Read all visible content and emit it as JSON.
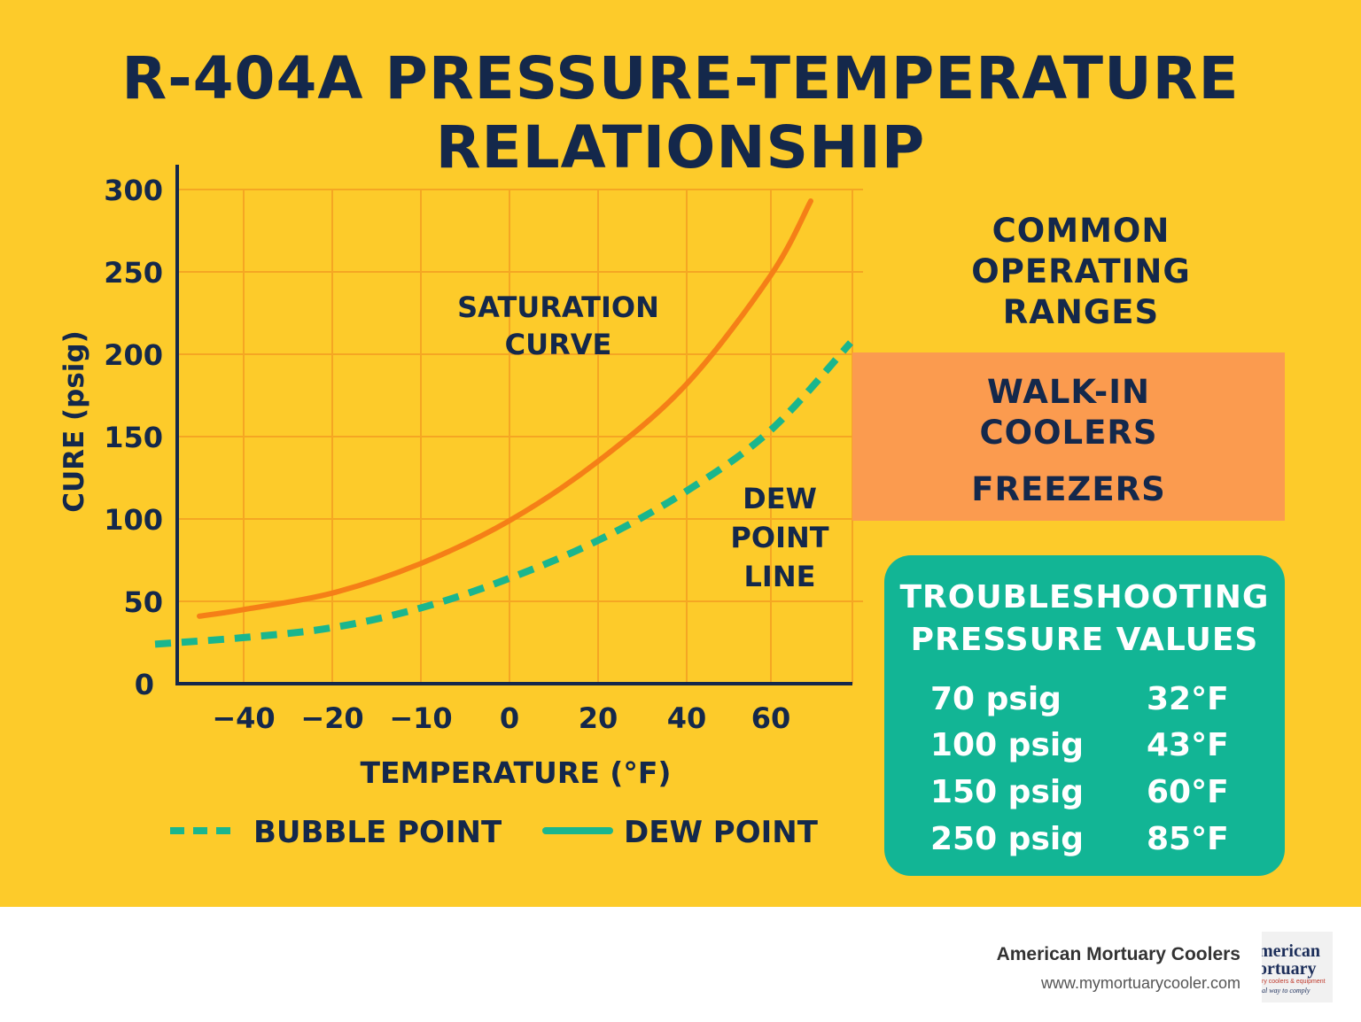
{
  "title": {
    "line1": "R-404A PRESSURE-TEMPERATURE",
    "line2": "RELATIONSHIP"
  },
  "chart_data": {
    "type": "line",
    "xlabel": "TEMPERATURE (°F)",
    "ylabel": "CURE (psig)",
    "x_ticks": [
      "−40",
      "−20",
      "−10",
      "0",
      "20",
      "40",
      "60"
    ],
    "y_ticks": [
      "0",
      "50",
      "100",
      "150",
      "200",
      "250",
      "300"
    ],
    "ylim": [
      0,
      300
    ],
    "grid": true,
    "legend_position": "bottom",
    "legend": [
      {
        "label": "BUBBLE POINT",
        "style": "dashed",
        "color": "#1ab68e"
      },
      {
        "label": "DEW POINT",
        "style": "solid",
        "color": "#1ab68e"
      }
    ],
    "annotations": [
      {
        "text": [
          "SATURATION",
          "CURVE"
        ]
      },
      {
        "text": [
          "DEW",
          "POINT",
          "LINE"
        ]
      }
    ],
    "series": [
      {
        "style": "solid",
        "color": "#f57f17",
        "points": [
          [
            -50,
            41
          ],
          [
            -40,
            45
          ],
          [
            -20,
            55
          ],
          [
            -10,
            73
          ],
          [
            0,
            99
          ],
          [
            20,
            135
          ],
          [
            40,
            182
          ],
          [
            60,
            248
          ],
          [
            69,
            293
          ]
        ]
      },
      {
        "style": "dashed",
        "color": "#1ab68e",
        "points": [
          [
            -60,
            24
          ],
          [
            -40,
            28
          ],
          [
            -20,
            34
          ],
          [
            -10,
            46
          ],
          [
            0,
            64
          ],
          [
            20,
            87
          ],
          [
            40,
            117
          ],
          [
            60,
            154
          ],
          [
            78,
            207
          ]
        ]
      }
    ]
  },
  "ranges": {
    "title": [
      "COMMON",
      "OPERATING",
      "RANGES"
    ],
    "walk_in": [
      "WALK-IN",
      "COOLERS"
    ],
    "freezers": "FREEZERS"
  },
  "troubleshooting": {
    "title": [
      "TROUBLESHOOTING",
      "PRESSURE VALUES"
    ],
    "rows": [
      {
        "pressure": "70 psig",
        "temp": "32°F"
      },
      {
        "pressure": "100 psig",
        "temp": "43°F"
      },
      {
        "pressure": "150 psig",
        "temp": "60°F"
      },
      {
        "pressure": "250 psig",
        "temp": "85°F"
      }
    ]
  },
  "footer": {
    "brand": "American Mortuary Coolers",
    "url": "www.mymortuarycooler.com",
    "logo_lines": [
      "merican",
      "ortuary",
      "ry coolers & equipment",
      "al way to comply"
    ]
  },
  "colors": {
    "background": "#fdcb2a",
    "navy": "#14284b",
    "orange_curve": "#f57f17",
    "teal": "#1ab68e",
    "ranges_box": "#fb9b4f",
    "trouble_box": "#12b595",
    "grid": "#f5a623"
  }
}
